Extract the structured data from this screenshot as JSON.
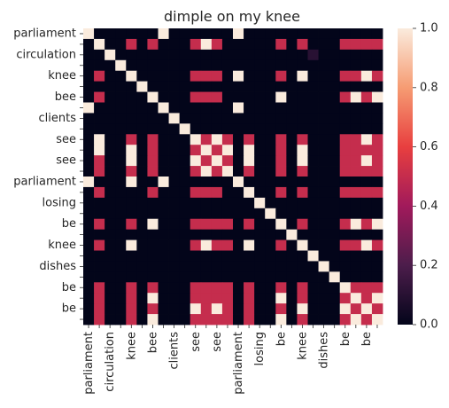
{
  "chart_data": {
    "type": "heatmap",
    "title": "dimple on my knee",
    "row_labels": [
      "parliament",
      "",
      "circulation",
      "",
      "knee",
      "",
      "bee",
      "",
      "clients",
      "",
      "see",
      "",
      "see",
      "",
      "parliament",
      "",
      "losing",
      "",
      "be",
      "",
      "knee",
      "",
      "dishes",
      "",
      "be",
      "",
      "be",
      ""
    ],
    "col_labels": [
      "parliament",
      "",
      "circulation",
      "",
      "knee",
      "",
      "bee",
      "",
      "clients",
      "",
      "see",
      "",
      "see",
      "",
      "parliament",
      "",
      "losing",
      "",
      "be",
      "",
      "knee",
      "",
      "dishes",
      "",
      "be",
      "",
      "be",
      ""
    ],
    "colorbar": {
      "min": 0.0,
      "max": 1.0,
      "ticks": [
        "0.0",
        "0.2",
        "0.4",
        "0.6",
        "0.8",
        "1.0"
      ],
      "colors": [
        "#03051a",
        "#4c1d4b",
        "#a11a5b",
        "#e83f3f",
        "#f69c73",
        "#faebdd"
      ]
    },
    "matrix": [
      [
        1,
        0,
        0,
        0,
        0,
        0,
        0,
        1,
        0,
        0,
        0,
        0,
        0,
        0,
        1,
        0,
        0,
        0,
        0,
        0,
        0,
        0,
        0,
        0,
        0,
        0,
        0,
        0
      ],
      [
        0,
        1,
        0,
        0,
        0.5,
        0,
        0.5,
        0,
        0,
        0,
        0.5,
        1,
        0.5,
        0,
        0,
        0,
        0,
        0,
        0.5,
        0,
        0.5,
        0,
        0,
        0,
        0.5,
        0.5,
        0.5,
        0.5
      ],
      [
        0,
        0,
        1,
        0,
        0,
        0,
        0,
        0,
        0,
        0,
        0,
        0,
        0,
        0,
        0,
        0,
        0,
        0,
        0,
        0,
        0,
        0.1,
        0,
        0,
        0,
        0,
        0,
        0
      ],
      [
        0,
        0,
        0,
        1,
        0,
        0,
        0,
        0,
        0,
        0,
        0,
        0,
        0,
        0,
        0,
        0,
        0,
        0,
        0,
        0,
        0,
        0,
        0,
        0,
        0,
        0,
        0,
        0
      ],
      [
        0,
        0.5,
        0,
        0,
        1,
        0,
        0,
        0,
        0,
        0,
        0.5,
        0.5,
        0.5,
        0,
        1,
        0,
        0,
        0,
        0.5,
        0,
        1,
        0,
        0,
        0,
        0.5,
        0.5,
        1,
        0.5
      ],
      [
        0,
        0,
        0,
        0,
        0,
        1,
        0,
        0,
        0,
        0,
        0,
        0,
        0,
        0,
        0,
        0,
        0,
        0,
        0,
        0,
        0,
        0,
        0,
        0,
        0,
        0,
        0,
        0
      ],
      [
        0,
        0.5,
        0,
        0,
        0,
        0,
        1,
        0,
        0,
        0,
        0.5,
        0.5,
        0.5,
        0,
        0,
        0,
        0,
        0,
        1,
        0,
        0,
        0,
        0,
        0,
        0.5,
        1,
        0.5,
        1
      ],
      [
        1,
        0,
        0,
        0,
        0,
        0,
        0,
        1,
        0,
        0,
        0,
        0,
        0,
        0,
        1,
        0,
        0,
        0,
        0,
        0,
        0,
        0,
        0,
        0,
        0,
        0,
        0,
        0
      ],
      [
        0,
        0,
        0,
        0,
        0,
        0,
        0,
        0,
        1,
        0,
        0,
        0,
        0,
        0,
        0,
        0,
        0,
        0,
        0,
        0,
        0,
        0,
        0,
        0,
        0,
        0,
        0,
        0
      ],
      [
        0,
        0,
        0,
        0,
        0,
        0,
        0,
        0,
        0,
        1,
        0,
        0,
        0,
        0,
        0,
        0,
        0,
        0,
        0,
        0,
        0,
        0,
        0,
        0,
        0,
        0,
        0,
        0
      ],
      [
        0,
        1,
        0,
        0,
        0.5,
        0,
        0.5,
        0,
        0,
        0,
        1,
        0.5,
        1,
        0.5,
        0,
        0.5,
        0,
        0,
        0.5,
        0,
        0.5,
        0,
        0,
        0,
        0.5,
        0.5,
        1,
        0.5
      ],
      [
        0,
        1,
        0,
        0,
        1,
        0,
        0.5,
        0,
        0,
        0,
        0.5,
        1,
        0.5,
        1,
        0,
        1,
        0,
        0,
        0.5,
        0,
        1,
        0,
        0,
        0,
        0.5,
        0.5,
        0.5,
        0.5
      ],
      [
        0,
        0.5,
        0,
        0,
        1,
        0,
        0.5,
        0,
        0,
        0,
        1,
        0.5,
        1,
        0.5,
        0,
        1,
        0,
        0,
        0.5,
        0,
        1,
        0,
        0,
        0,
        0.5,
        0.5,
        1,
        0.5
      ],
      [
        0,
        0.5,
        0,
        0,
        0.5,
        0,
        0.5,
        0,
        0,
        0,
        0.5,
        1,
        0.5,
        1,
        0,
        0.5,
        0,
        0,
        0.5,
        0,
        0.5,
        0,
        0,
        0,
        0.5,
        0.5,
        0.5,
        0.5
      ],
      [
        1,
        0,
        0,
        0,
        1,
        0,
        0,
        1,
        0,
        0,
        0,
        0,
        0,
        0,
        1,
        0,
        0,
        0,
        0,
        0,
        0,
        0,
        0,
        0,
        0,
        0,
        0,
        0
      ],
      [
        0,
        0.5,
        0,
        0,
        0,
        0,
        0.5,
        0,
        0,
        0,
        0.5,
        0.5,
        0.5,
        0,
        0,
        1,
        0,
        0,
        0.5,
        0,
        0.5,
        0,
        0,
        0,
        0.5,
        0.5,
        0.5,
        0.5
      ],
      [
        0,
        0,
        0,
        0,
        0,
        0,
        0,
        0,
        0,
        0,
        0,
        0,
        0,
        0,
        0,
        0,
        1,
        0,
        0,
        0,
        0,
        0,
        0,
        0,
        0,
        0,
        0,
        0
      ],
      [
        0,
        0,
        0,
        0,
        0,
        0,
        0,
        0,
        0,
        0,
        0,
        0,
        0,
        0,
        0,
        0,
        0,
        1,
        0,
        0,
        0,
        0,
        0,
        0,
        0,
        0,
        0,
        0
      ],
      [
        0,
        0.5,
        0,
        0,
        0.5,
        0,
        1,
        0,
        0,
        0,
        0.5,
        0.5,
        0.5,
        0.5,
        0,
        0.5,
        0,
        0,
        1,
        0,
        0.5,
        0,
        0,
        0,
        0.5,
        1,
        0.5,
        1
      ],
      [
        0,
        0,
        0,
        0,
        0,
        0,
        0,
        0,
        0,
        0,
        0,
        0,
        0,
        0,
        0,
        0,
        0,
        0,
        0,
        1,
        0,
        0,
        0,
        0,
        0,
        0,
        0,
        0
      ],
      [
        0,
        0.5,
        0,
        0,
        1,
        0,
        0,
        0,
        0,
        0,
        0.5,
        1,
        0.5,
        0.5,
        0,
        1,
        0,
        0,
        0.5,
        0,
        1,
        0,
        0,
        0,
        0.5,
        0.5,
        1,
        0.5
      ],
      [
        0,
        0,
        0,
        0,
        0,
        0,
        0,
        0,
        0,
        0,
        0,
        0,
        0,
        0,
        0,
        0,
        0,
        0,
        0,
        0,
        0,
        1,
        0,
        0,
        0,
        0,
        0,
        0
      ],
      [
        0,
        0,
        0,
        0,
        0,
        0,
        0,
        0,
        0,
        0,
        0,
        0,
        0,
        0,
        0,
        0,
        0,
        0,
        0,
        0,
        0,
        0,
        1,
        0,
        0,
        0,
        0,
        0
      ],
      [
        0,
        0,
        0,
        0,
        0,
        0,
        0,
        0,
        0,
        0,
        0,
        0,
        0,
        0,
        0,
        0,
        0,
        0,
        0,
        0,
        0,
        0,
        0,
        1,
        0,
        0,
        0,
        0
      ],
      [
        0,
        0.5,
        0,
        0,
        0.5,
        0,
        0.5,
        0,
        0,
        0,
        0.5,
        0.5,
        0.5,
        0.5,
        0,
        0.5,
        0,
        0,
        0.5,
        0,
        0.5,
        0,
        0,
        0,
        1,
        0.5,
        0.5,
        0.5
      ],
      [
        0,
        0.5,
        0,
        0,
        0.5,
        0,
        1,
        0,
        0,
        0,
        0.5,
        0.5,
        0.5,
        0.5,
        0,
        0.5,
        0,
        0,
        1,
        0,
        0.5,
        0,
        0,
        0,
        0.5,
        1,
        0.5,
        1
      ],
      [
        0,
        0.5,
        0,
        0,
        0.5,
        0,
        0.5,
        0,
        0,
        0,
        1,
        0.5,
        1,
        0.5,
        0,
        0.5,
        0,
        0,
        0.5,
        0,
        1,
        0,
        0,
        0,
        1,
        0.5,
        1,
        0.5
      ],
      [
        0,
        0.5,
        0,
        0,
        0.5,
        0,
        1,
        0,
        0,
        0,
        0.5,
        0.5,
        0.5,
        0.5,
        0,
        0.5,
        0,
        0,
        1,
        0,
        0.5,
        0,
        0,
        0,
        0.5,
        1,
        0.5,
        1
      ]
    ]
  }
}
